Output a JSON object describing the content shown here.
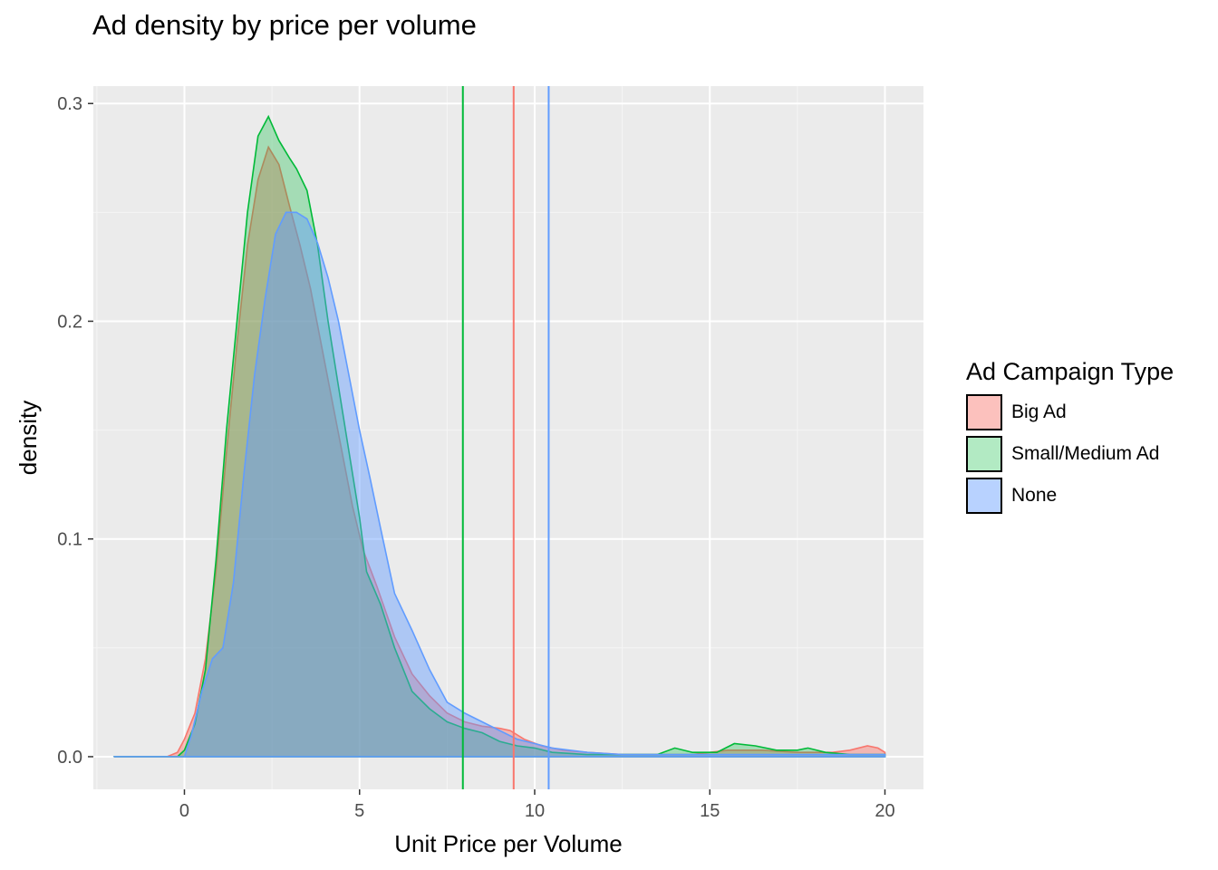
{
  "chart_data": {
    "type": "area",
    "title": "Ad density by price per volume",
    "xlabel": "Unit Price per Volume",
    "ylabel": "density",
    "xlim": [
      -2.6,
      21.1
    ],
    "ylim": [
      -0.015,
      0.308
    ],
    "x_ticks": [
      0,
      5,
      10,
      15,
      20
    ],
    "x_tick_labels": [
      "0",
      "5",
      "10",
      "15",
      "20"
    ],
    "y_ticks": [
      0.0,
      0.1,
      0.2,
      0.3
    ],
    "y_tick_labels": [
      "0.0",
      "0.1",
      "0.2",
      "0.3"
    ],
    "grid": true,
    "legend": {
      "title": "Ad Campaign Type",
      "position": "right"
    },
    "series": [
      {
        "name": "Big Ad",
        "color": "#F8766D",
        "fill": "rgba(248,118,109,0.45)",
        "mean_line": 9.4,
        "points": [
          [
            -2,
            0
          ],
          [
            -0.5,
            0
          ],
          [
            -0.2,
            0.002
          ],
          [
            0,
            0.008
          ],
          [
            0.3,
            0.02
          ],
          [
            0.6,
            0.045
          ],
          [
            0.9,
            0.085
          ],
          [
            1.2,
            0.14
          ],
          [
            1.5,
            0.19
          ],
          [
            1.8,
            0.235
          ],
          [
            2.1,
            0.265
          ],
          [
            2.4,
            0.28
          ],
          [
            2.7,
            0.272
          ],
          [
            3.0,
            0.253
          ],
          [
            3.3,
            0.235
          ],
          [
            3.6,
            0.215
          ],
          [
            3.9,
            0.19
          ],
          [
            4.2,
            0.165
          ],
          [
            4.5,
            0.14
          ],
          [
            4.8,
            0.115
          ],
          [
            5.1,
            0.095
          ],
          [
            5.5,
            0.078
          ],
          [
            6.0,
            0.055
          ],
          [
            6.5,
            0.038
          ],
          [
            7.0,
            0.028
          ],
          [
            7.5,
            0.02
          ],
          [
            8.0,
            0.016
          ],
          [
            8.5,
            0.014
          ],
          [
            9.0,
            0.013
          ],
          [
            9.3,
            0.012
          ],
          [
            9.7,
            0.008
          ],
          [
            10.2,
            0.005
          ],
          [
            10.8,
            0.003
          ],
          [
            11.5,
            0.002
          ],
          [
            12.5,
            0.001
          ],
          [
            13.5,
            0.001
          ],
          [
            14.5,
            0.001
          ],
          [
            15.5,
            0.003
          ],
          [
            16.5,
            0.003
          ],
          [
            17.5,
            0.002
          ],
          [
            18.5,
            0.002
          ],
          [
            19.0,
            0.003
          ],
          [
            19.5,
            0.005
          ],
          [
            19.8,
            0.004
          ],
          [
            20,
            0.002
          ]
        ]
      },
      {
        "name": "Small/Medium Ad",
        "color": "#00BA38",
        "fill": "rgba(0,186,56,0.30)",
        "mean_line": 7.95,
        "points": [
          [
            -2,
            0
          ],
          [
            -0.2,
            0
          ],
          [
            0,
            0.003
          ],
          [
            0.3,
            0.015
          ],
          [
            0.6,
            0.04
          ],
          [
            0.9,
            0.09
          ],
          [
            1.2,
            0.15
          ],
          [
            1.5,
            0.2
          ],
          [
            1.8,
            0.25
          ],
          [
            2.1,
            0.285
          ],
          [
            2.4,
            0.294
          ],
          [
            2.7,
            0.283
          ],
          [
            3.0,
            0.275
          ],
          [
            3.2,
            0.27
          ],
          [
            3.5,
            0.26
          ],
          [
            3.8,
            0.235
          ],
          [
            4.1,
            0.2
          ],
          [
            4.4,
            0.17
          ],
          [
            4.7,
            0.14
          ],
          [
            5.0,
            0.11
          ],
          [
            5.2,
            0.085
          ],
          [
            5.6,
            0.07
          ],
          [
            6.0,
            0.05
          ],
          [
            6.5,
            0.03
          ],
          [
            7.0,
            0.022
          ],
          [
            7.5,
            0.016
          ],
          [
            8.0,
            0.013
          ],
          [
            8.5,
            0.011
          ],
          [
            9.0,
            0.007
          ],
          [
            9.5,
            0.005
          ],
          [
            10.0,
            0.004
          ],
          [
            10.5,
            0.002
          ],
          [
            11.5,
            0.001
          ],
          [
            12.5,
            0.001
          ],
          [
            13.5,
            0.001
          ],
          [
            14.0,
            0.004
          ],
          [
            14.5,
            0.002
          ],
          [
            15.2,
            0.002
          ],
          [
            15.7,
            0.006
          ],
          [
            16.3,
            0.005
          ],
          [
            16.9,
            0.003
          ],
          [
            17.5,
            0.003
          ],
          [
            17.8,
            0.004
          ],
          [
            18.3,
            0.002
          ],
          [
            19.0,
            0.001
          ],
          [
            20,
            0.001
          ]
        ]
      },
      {
        "name": "None",
        "color": "#619CFF",
        "fill": "rgba(97,156,255,0.45)",
        "mean_line": 10.4,
        "points": [
          [
            -2,
            0
          ],
          [
            0,
            0
          ],
          [
            0.2,
            0.01
          ],
          [
            0.5,
            0.03
          ],
          [
            0.8,
            0.045
          ],
          [
            1.1,
            0.05
          ],
          [
            1.4,
            0.08
          ],
          [
            1.7,
            0.13
          ],
          [
            2.0,
            0.175
          ],
          [
            2.3,
            0.21
          ],
          [
            2.6,
            0.24
          ],
          [
            2.9,
            0.25
          ],
          [
            3.2,
            0.25
          ],
          [
            3.5,
            0.247
          ],
          [
            3.8,
            0.236
          ],
          [
            4.1,
            0.22
          ],
          [
            4.4,
            0.2
          ],
          [
            4.7,
            0.175
          ],
          [
            5.0,
            0.15
          ],
          [
            5.3,
            0.128
          ],
          [
            5.6,
            0.105
          ],
          [
            6.0,
            0.075
          ],
          [
            6.5,
            0.058
          ],
          [
            7.0,
            0.04
          ],
          [
            7.5,
            0.025
          ],
          [
            8.0,
            0.02
          ],
          [
            8.5,
            0.016
          ],
          [
            9.0,
            0.012
          ],
          [
            9.5,
            0.008
          ],
          [
            10.0,
            0.006
          ],
          [
            10.5,
            0.004
          ],
          [
            11.0,
            0.003
          ],
          [
            11.5,
            0.002
          ],
          [
            12.5,
            0.001
          ],
          [
            14,
            0.001
          ],
          [
            16,
            0.001
          ],
          [
            18,
            0.001
          ],
          [
            20,
            0.001
          ]
        ]
      }
    ]
  }
}
